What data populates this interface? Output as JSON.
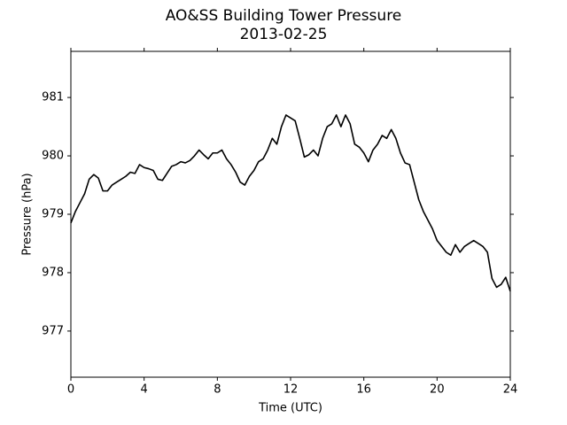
{
  "chart_data": {
    "type": "line",
    "title": "AO&SS Building Tower Pressure",
    "subtitle": "2013-02-25",
    "xlabel": "Time (UTC)",
    "ylabel": "Pressure (hPa)",
    "color": "#000000",
    "x": [
      0,
      0.25,
      0.5,
      0.75,
      1,
      1.25,
      1.5,
      1.75,
      2,
      2.25,
      2.5,
      2.75,
      3,
      3.25,
      3.5,
      3.75,
      4,
      4.25,
      4.5,
      4.75,
      5,
      5.25,
      5.5,
      5.75,
      6,
      6.25,
      6.5,
      6.75,
      7,
      7.25,
      7.5,
      7.75,
      8,
      8.25,
      8.5,
      8.75,
      9,
      9.25,
      9.5,
      9.75,
      10,
      10.25,
      10.5,
      10.75,
      11,
      11.25,
      11.5,
      11.75,
      12,
      12.25,
      12.5,
      12.75,
      13,
      13.25,
      13.5,
      13.75,
      14,
      14.25,
      14.5,
      14.75,
      15,
      15.25,
      15.5,
      15.75,
      16,
      16.25,
      16.5,
      16.75,
      17,
      17.25,
      17.5,
      17.75,
      18,
      18.25,
      18.5,
      18.75,
      19,
      19.25,
      19.5,
      19.75,
      20,
      20.25,
      20.5,
      20.75,
      21,
      21.25,
      21.5,
      21.75,
      22,
      22.25,
      22.5,
      22.75,
      23,
      23.25,
      23.5,
      23.75,
      24
    ],
    "values": [
      978.85,
      979.05,
      979.2,
      979.35,
      979.6,
      979.68,
      979.62,
      979.4,
      979.4,
      979.5,
      979.55,
      979.6,
      979.65,
      979.72,
      979.7,
      979.85,
      979.8,
      979.78,
      979.75,
      979.6,
      979.58,
      979.7,
      979.82,
      979.85,
      979.9,
      979.88,
      979.92,
      980.0,
      980.1,
      980.02,
      979.95,
      980.05,
      980.05,
      980.1,
      979.95,
      979.85,
      979.72,
      979.55,
      979.5,
      979.65,
      979.75,
      979.9,
      979.95,
      980.1,
      980.3,
      980.2,
      980.5,
      980.7,
      980.65,
      980.6,
      980.3,
      979.98,
      980.02,
      980.1,
      980.0,
      980.3,
      980.5,
      980.55,
      980.7,
      980.5,
      980.7,
      980.55,
      980.2,
      980.15,
      980.05,
      979.9,
      980.1,
      980.2,
      980.35,
      980.3,
      980.45,
      980.3,
      980.05,
      979.88,
      979.85,
      979.55,
      979.25,
      979.05,
      978.9,
      978.75,
      978.55,
      978.45,
      978.35,
      978.3,
      978.48,
      978.35,
      978.45,
      978.5,
      978.55,
      978.5,
      978.45,
      978.35,
      977.9,
      977.75,
      977.8,
      977.92,
      977.68
    ],
    "xlim": [
      0,
      24
    ],
    "xticks": [
      0,
      4,
      8,
      12,
      16,
      20,
      24
    ],
    "ylim": [
      976.21,
      981.79
    ],
    "yticks": [
      977,
      978,
      979,
      980,
      981
    ]
  }
}
